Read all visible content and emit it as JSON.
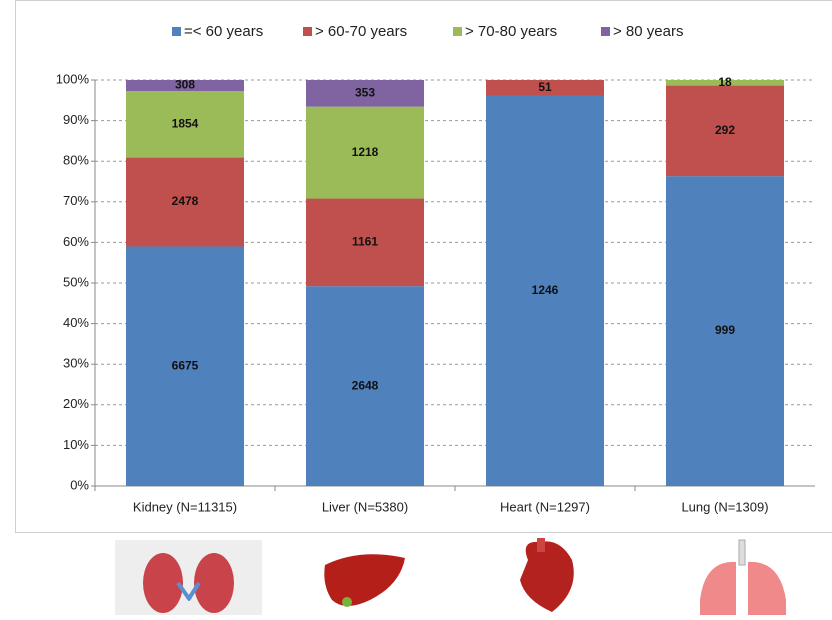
{
  "chart_data": {
    "type": "bar",
    "stacking": "percent",
    "categories": [
      "Kidney (N=11315)",
      "Liver (N=5380)",
      "Heart (N=1297)",
      "Lung (N=1309)"
    ],
    "series": [
      {
        "name": "=< 60 years",
        "color": "#4f81bd",
        "values": [
          6675,
          2648,
          1246,
          999
        ]
      },
      {
        "name": "> 60-70 years",
        "color": "#c0504d",
        "values": [
          2478,
          1161,
          51,
          292
        ]
      },
      {
        "name": "> 70-80 years",
        "color": "#9bbb59",
        "values": [
          1854,
          1218,
          null,
          18
        ]
      },
      {
        "name": "> 80 years",
        "color": "#8064a2",
        "values": [
          308,
          353,
          null,
          null
        ]
      }
    ],
    "ylim": [
      0,
      100
    ],
    "yticks": [
      {
        "value": 0,
        "label": "0%"
      },
      {
        "value": 10,
        "label": "10%"
      },
      {
        "value": 20,
        "label": "20%"
      },
      {
        "value": 30,
        "label": "30%"
      },
      {
        "value": 40,
        "label": "40%"
      },
      {
        "value": 50,
        "label": "50%"
      },
      {
        "value": 60,
        "label": "60%"
      },
      {
        "value": 70,
        "label": "70%"
      },
      {
        "value": 80,
        "label": "80%"
      },
      {
        "value": 90,
        "label": "90%"
      },
      {
        "value": 100,
        "label": "100%"
      }
    ],
    "grid": true,
    "legend": "top"
  }
}
